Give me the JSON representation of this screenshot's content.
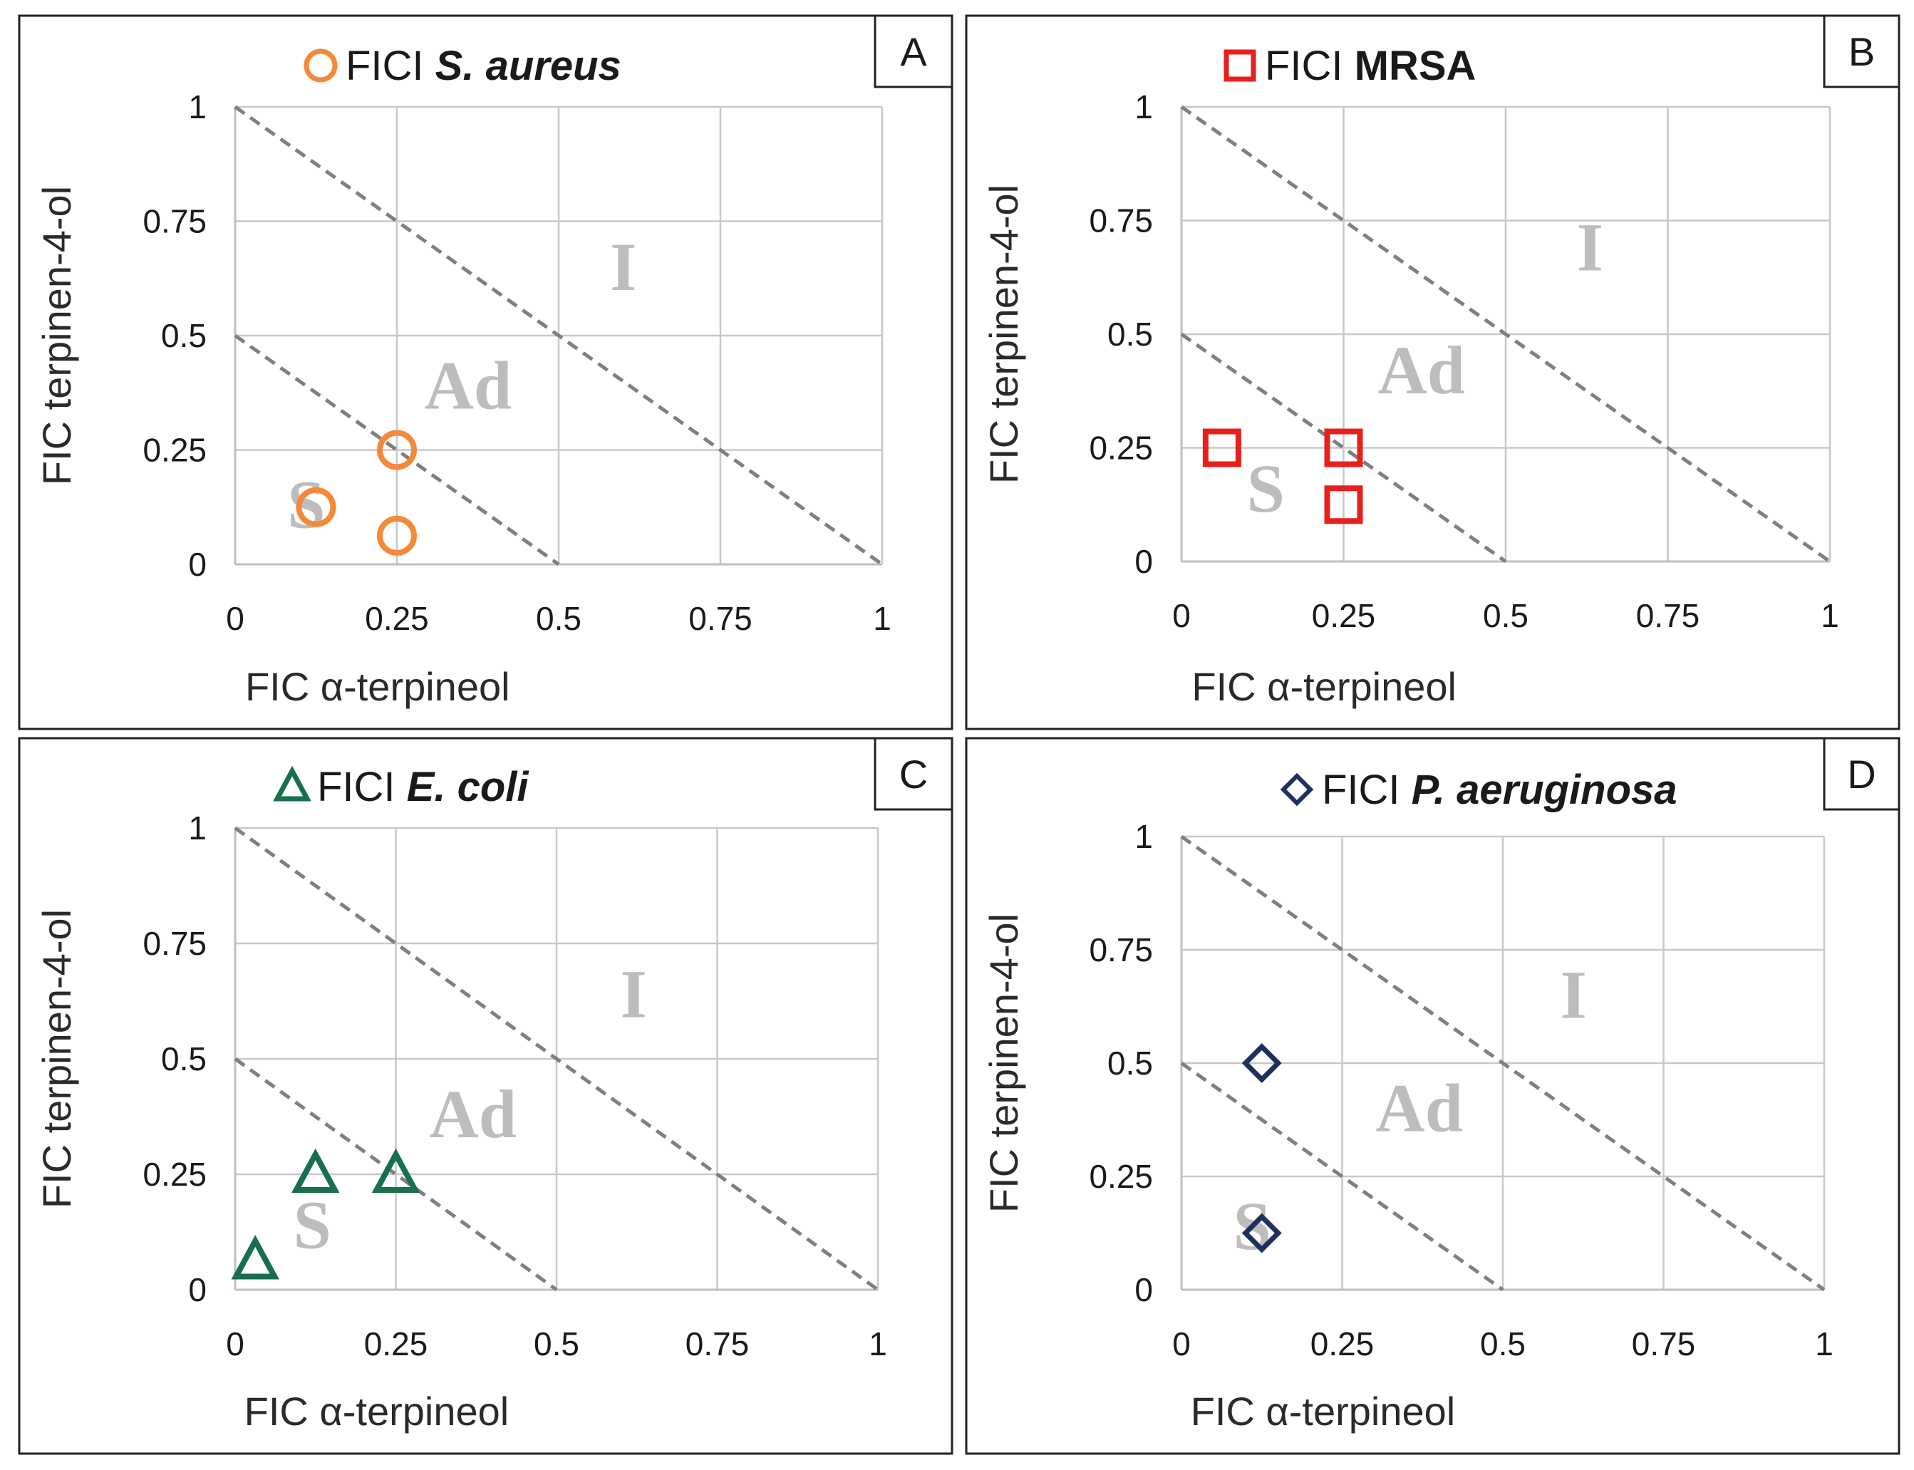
{
  "colors": {
    "grid": "#c8c8c8",
    "axis": "#bfbfbf",
    "diag": "#7f7f7f",
    "zone_text": "#bdbdbd",
    "frame": "#222222",
    "tick_text": "#1a1a1a",
    "label_text": "#2a2a2a"
  },
  "chart_data": [
    {
      "id": "A",
      "type": "scatter",
      "panel_letter": "A",
      "title_prefix": "FICI",
      "organism": "S. aureus",
      "organism_italic": true,
      "marker": "circle",
      "marker_color": "#f4893a",
      "xlabel": "FIC α-terpineol",
      "ylabel": "FIC terpinen-4-ol",
      "xlim": [
        0,
        1
      ],
      "ylim": [
        0,
        1
      ],
      "ticks": [
        "0",
        "0.25",
        "0.5",
        "0.75",
        "1"
      ],
      "tick_values": [
        0,
        0.25,
        0.5,
        0.75,
        1
      ],
      "grid": true,
      "isobole_lines": [
        0.5,
        1
      ],
      "zones": [
        {
          "label": "I",
          "x": 0.6,
          "y": 0.6
        },
        {
          "label": "Ad",
          "x": 0.36,
          "y": 0.34
        },
        {
          "label": "S",
          "x": 0.11,
          "y": 0.08
        }
      ],
      "points": [
        {
          "x": 0.125,
          "y": 0.125
        },
        {
          "x": 0.25,
          "y": 0.25
        },
        {
          "x": 0.25,
          "y": 0.0625
        }
      ]
    },
    {
      "id": "B",
      "type": "scatter",
      "panel_letter": "B",
      "title_prefix": "FICI",
      "organism": "MRSA",
      "organism_italic": false,
      "marker": "square",
      "marker_color": "#e8201c",
      "xlabel": "FIC α-terpineol",
      "ylabel": "FIC terpinen-4-ol",
      "xlim": [
        0,
        1
      ],
      "ylim": [
        0,
        1
      ],
      "ticks": [
        "0",
        "0.25",
        "0.5",
        "0.75",
        "1"
      ],
      "tick_values": [
        0,
        0.25,
        0.5,
        0.75,
        1
      ],
      "grid": true,
      "isobole_lines": [
        0.5,
        1
      ],
      "zones": [
        {
          "label": "I",
          "x": 0.63,
          "y": 0.64
        },
        {
          "label": "Ad",
          "x": 0.37,
          "y": 0.37
        },
        {
          "label": "S",
          "x": 0.13,
          "y": 0.11
        }
      ],
      "points": [
        {
          "x": 0.0625,
          "y": 0.25
        },
        {
          "x": 0.25,
          "y": 0.25
        },
        {
          "x": 0.25,
          "y": 0.125
        }
      ]
    },
    {
      "id": "C",
      "type": "scatter",
      "panel_letter": "C",
      "title_prefix": "FICI",
      "organism": "E. coli",
      "organism_italic": true,
      "marker": "triangle",
      "marker_color": "#17704a",
      "xlabel": "FIC α-terpineol",
      "ylabel": "FIC terpinen-4-ol",
      "xlim": [
        0,
        1
      ],
      "ylim": [
        0,
        1
      ],
      "ticks": [
        "0",
        "0.25",
        "0.5",
        "0.75",
        "1"
      ],
      "tick_values": [
        0,
        0.25,
        0.5,
        0.75,
        1
      ],
      "grid": true,
      "isobole_lines": [
        0.5,
        1
      ],
      "zones": [
        {
          "label": "I",
          "x": 0.62,
          "y": 0.59
        },
        {
          "label": "Ad",
          "x": 0.37,
          "y": 0.33
        },
        {
          "label": "S",
          "x": 0.12,
          "y": 0.09
        }
      ],
      "points": [
        {
          "x": 0.0313,
          "y": 0.0625
        },
        {
          "x": 0.125,
          "y": 0.25
        },
        {
          "x": 0.25,
          "y": 0.25
        }
      ]
    },
    {
      "id": "D",
      "type": "scatter",
      "panel_letter": "D",
      "title_prefix": "FICI",
      "organism": "P. aeruginosa",
      "organism_italic": true,
      "marker": "diamond",
      "marker_color": "#1f2f5e",
      "xlabel": "FIC α-terpineol",
      "ylabel": "FIC terpinen-4-ol",
      "xlim": [
        0,
        1
      ],
      "ylim": [
        0,
        1
      ],
      "ticks": [
        "0",
        "0.25",
        "0.5",
        "0.75",
        "1"
      ],
      "tick_values": [
        0,
        0.25,
        0.5,
        0.75,
        1
      ],
      "grid": true,
      "isobole_lines": [
        0.5,
        1
      ],
      "zones": [
        {
          "label": "I",
          "x": 0.61,
          "y": 0.6
        },
        {
          "label": "Ad",
          "x": 0.37,
          "y": 0.35
        },
        {
          "label": "S",
          "x": 0.11,
          "y": 0.09
        }
      ],
      "points": [
        {
          "x": 0.125,
          "y": 0.5
        },
        {
          "x": 0.125,
          "y": 0.125
        }
      ]
    }
  ]
}
